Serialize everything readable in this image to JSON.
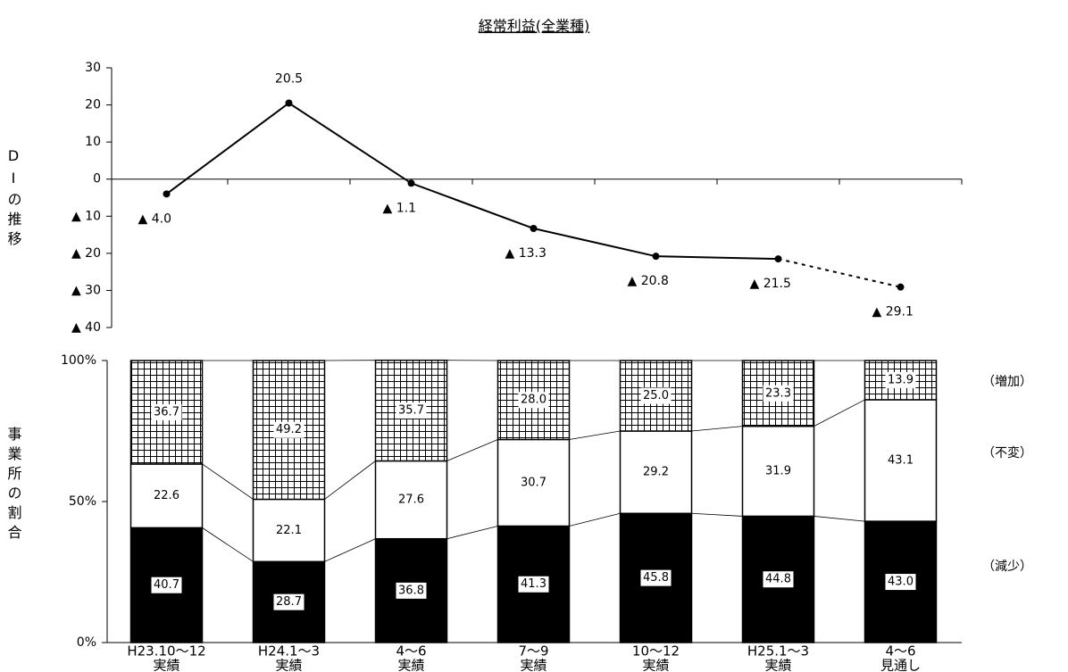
{
  "chart_data": [
    {
      "type": "line",
      "title": "経常利益(全業種)",
      "y_label": "DIの推移",
      "categories": [
        [
          "H23.10～12",
          "実績"
        ],
        [
          "H24.1～3",
          "実績"
        ],
        [
          "4～6",
          "実績"
        ],
        [
          "7～9",
          "実績"
        ],
        [
          "10～12",
          "実績"
        ],
        [
          "H25.1～3",
          "実績"
        ],
        [
          "4～6",
          "見通し"
        ]
      ],
      "values": [
        -4.0,
        20.5,
        -1.1,
        -13.3,
        -20.8,
        -21.5,
        -29.1
      ],
      "value_labels": [
        "▲ 4.0",
        "20.5",
        "▲ 1.1",
        "▲ 13.3",
        "▲ 20.8",
        "▲ 21.5",
        "▲ 29.1"
      ],
      "color": "#000000",
      "dashed_last_segment": true,
      "ylim": [
        -40,
        30
      ],
      "yticks": [
        30,
        20,
        10,
        0,
        {
          "value": -10,
          "label": "▲ 10"
        },
        {
          "value": -20,
          "label": "▲ 20"
        },
        {
          "value": -30,
          "label": "▲ 30"
        },
        {
          "value": -40,
          "label": "▲ 40"
        }
      ]
    },
    {
      "type": "stacked_bar",
      "y_label": "事業所の割合",
      "series": [
        {
          "name": "（減少）",
          "color": "#000000",
          "values": [
            40.7,
            28.7,
            36.8,
            41.3,
            45.8,
            44.8,
            43.0
          ],
          "value_labels": [
            "40.7",
            "28.7",
            "36.8",
            "41.3",
            "45.8",
            "44.8",
            "43.0"
          ]
        },
        {
          "name": "（不変）",
          "color": "#ffffff",
          "values": [
            22.6,
            22.1,
            27.6,
            30.7,
            29.2,
            31.9,
            43.1
          ],
          "value_labels": [
            "22.6",
            "22.1",
            "27.6",
            "30.7",
            "29.2",
            "31.9",
            "43.1"
          ]
        },
        {
          "name": "（増加）",
          "color": "grid",
          "values": [
            36.7,
            49.2,
            35.7,
            28.0,
            25.0,
            23.3,
            13.9
          ],
          "value_labels": [
            "36.7",
            "49.2",
            "35.7",
            "28.0",
            "25.0",
            "23.3",
            "13.9"
          ]
        }
      ],
      "ylim": [
        0,
        100
      ],
      "yticks": [
        {
          "value": 0,
          "label": "0%"
        },
        {
          "value": 50,
          "label": "50%"
        },
        {
          "value": 100,
          "label": "100%"
        }
      ]
    }
  ]
}
